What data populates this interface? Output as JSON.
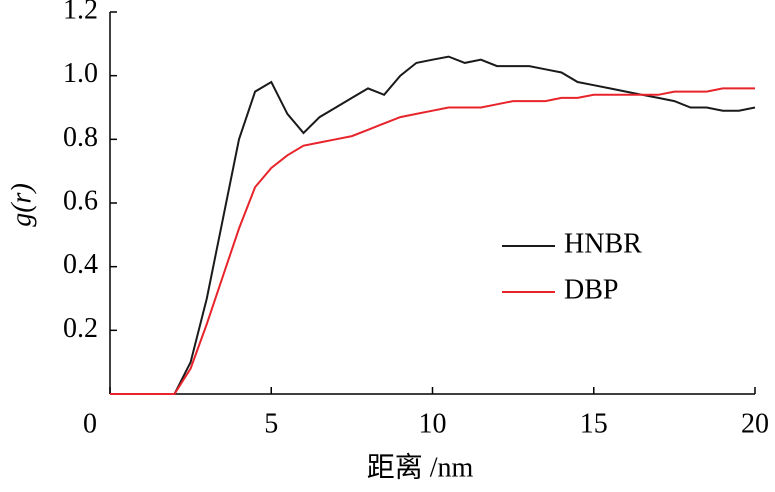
{
  "chart_data": {
    "type": "line",
    "x_label": "距离 /nm",
    "y_label": "g(r)",
    "x": [
      0,
      0.5,
      1,
      1.5,
      2,
      2.5,
      3,
      3.5,
      4,
      4.5,
      5,
      5.5,
      6,
      6.5,
      7,
      7.5,
      8,
      8.5,
      9,
      9.5,
      10,
      10.5,
      11,
      11.5,
      12,
      12.5,
      13,
      13.5,
      14,
      14.5,
      15,
      15.5,
      16,
      16.5,
      17,
      17.5,
      18,
      18.5,
      19,
      19.5,
      20
    ],
    "series": [
      {
        "name": "HNBR",
        "color": "#1a1a1a",
        "values": [
          0,
          0,
          0,
          0,
          0,
          0.1,
          0.3,
          0.55,
          0.8,
          0.95,
          0.98,
          0.88,
          0.82,
          0.87,
          0.9,
          0.93,
          0.96,
          0.94,
          1.0,
          1.04,
          1.05,
          1.06,
          1.04,
          1.05,
          1.03,
          1.03,
          1.03,
          1.02,
          1.01,
          0.98,
          0.97,
          0.96,
          0.95,
          0.94,
          0.93,
          0.92,
          0.9,
          0.9,
          0.89,
          0.89,
          0.9
        ]
      },
      {
        "name": "DBP",
        "color": "#e8242b",
        "values": [
          0,
          0,
          0,
          0,
          0,
          0.08,
          0.22,
          0.37,
          0.52,
          0.65,
          0.71,
          0.75,
          0.78,
          0.79,
          0.8,
          0.81,
          0.83,
          0.85,
          0.87,
          0.88,
          0.89,
          0.9,
          0.9,
          0.9,
          0.91,
          0.92,
          0.92,
          0.92,
          0.93,
          0.93,
          0.94,
          0.94,
          0.94,
          0.94,
          0.94,
          0.95,
          0.95,
          0.95,
          0.96,
          0.96,
          0.96
        ]
      }
    ],
    "xlim": [
      0,
      20
    ],
    "xticks": [
      0,
      5,
      10,
      15,
      20
    ],
    "ylim": [
      0,
      1.2
    ],
    "yticks": [
      0.2,
      0.4,
      0.6,
      {
        "value": 0.8,
        "label": "0.8"
      },
      {
        "value": 1.0,
        "label": "1.0"
      },
      1.2
    ],
    "legend": "center-right"
  }
}
